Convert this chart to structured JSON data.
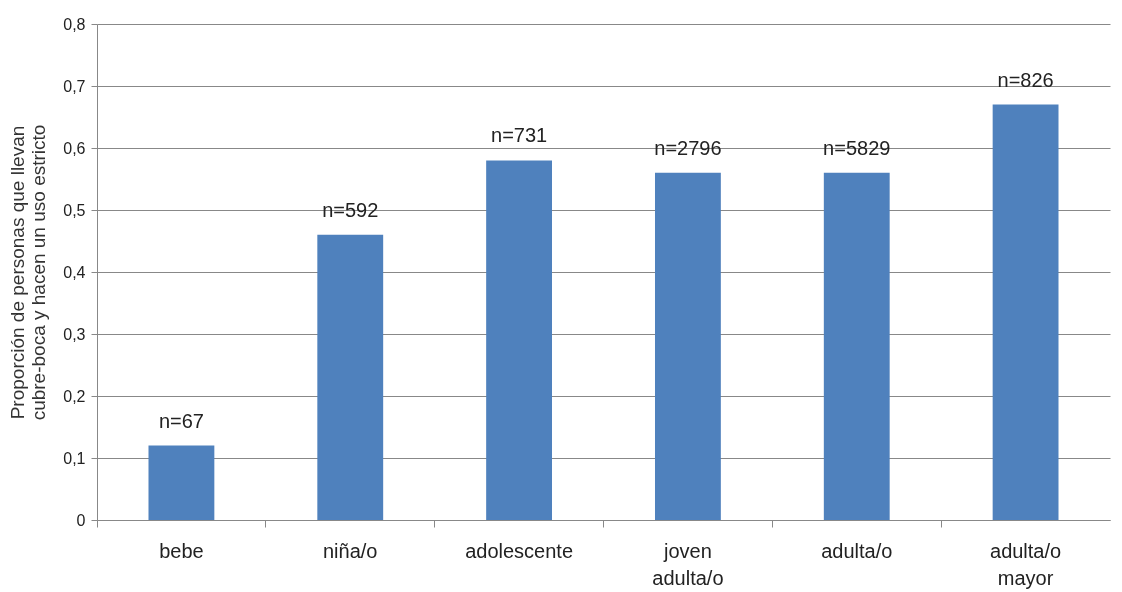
{
  "chart_data": {
    "type": "bar",
    "ylabel": "Proporción de personas que llevan\ncubre-boca y hacen un uso estricto",
    "categories": [
      "bebe",
      "niña/o",
      "adolescente",
      "joven adulta/o",
      "adulta/o",
      "adulta/o mayor"
    ],
    "values": [
      0.12,
      0.46,
      0.58,
      0.56,
      0.56,
      0.67
    ],
    "annotations": [
      {
        "text": "n=67",
        "x": "bebe",
        "y": 0.12
      },
      {
        "text": "n=592",
        "x": "niña/o",
        "y": 0.46
      },
      {
        "text": "n=731",
        "x": "adolescente",
        "y": 0.58
      },
      {
        "text": "n=2796",
        "x": "joven adulta/o",
        "y": 0.56
      },
      {
        "text": "n=5829",
        "x": "adulta/o",
        "y": 0.56
      },
      {
        "text": "n=826",
        "x": "adulta/o mayor",
        "y": 0.67
      }
    ],
    "color": "#4f81bd",
    "ylim": [
      0,
      0.8
    ],
    "yticks": [
      {
        "value": 0,
        "label": "0"
      },
      {
        "value": 0.1,
        "label": "0,1"
      },
      {
        "value": 0.2,
        "label": "0,2"
      },
      {
        "value": 0.3,
        "label": "0,3"
      },
      {
        "value": 0.4,
        "label": "0,4"
      },
      {
        "value": 0.5,
        "label": "0,5"
      },
      {
        "value": 0.6,
        "label": "0,6"
      },
      {
        "value": 0.7,
        "label": "0,7"
      },
      {
        "value": 0.8,
        "label": "0,8"
      }
    ],
    "grid": "y"
  }
}
